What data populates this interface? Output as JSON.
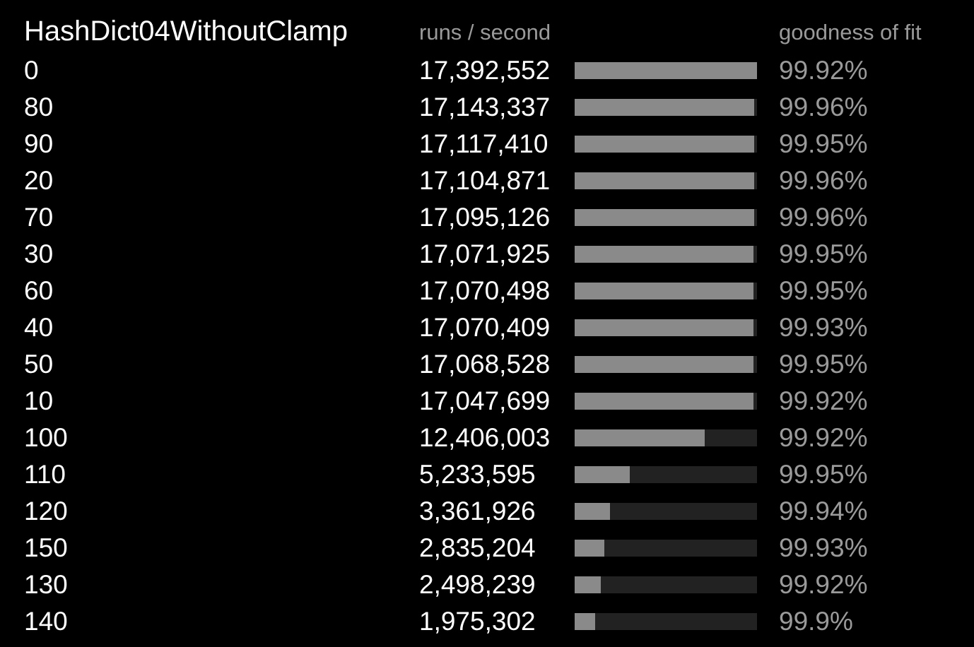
{
  "header": {
    "title": "HashDict04WithoutClamp",
    "runs_label": "runs / second",
    "fit_label": "goodness of fit"
  },
  "colors": {
    "background": "#000000",
    "bar_fill": "#8a8a8a",
    "bar_track": "#222222",
    "text_primary": "#ffffff",
    "text_secondary": "#9a9a9a"
  },
  "chart_data": {
    "type": "bar",
    "title": "HashDict04WithoutClamp",
    "orientation": "horizontal",
    "categories": [
      "0",
      "80",
      "90",
      "20",
      "70",
      "30",
      "60",
      "40",
      "50",
      "10",
      "100",
      "110",
      "120",
      "150",
      "130",
      "140"
    ],
    "values": [
      17392552,
      17143337,
      17117410,
      17104871,
      17095126,
      17071925,
      17070498,
      17070409,
      17068528,
      17047699,
      12406003,
      5233595,
      3361926,
      2835204,
      2498239,
      1975302
    ],
    "value_labels": [
      "17,392,552",
      "17,143,337",
      "17,117,410",
      "17,104,871",
      "17,095,126",
      "17,071,925",
      "17,070,498",
      "17,070,409",
      "17,068,528",
      "17,047,699",
      "12,406,003",
      "5,233,595",
      "3,361,926",
      "2,835,204",
      "2,498,239",
      "1,975,302"
    ],
    "goodness_of_fit": [
      "99.92%",
      "99.96%",
      "99.95%",
      "99.96%",
      "99.96%",
      "99.95%",
      "99.95%",
      "99.93%",
      "99.95%",
      "99.92%",
      "99.92%",
      "99.95%",
      "99.94%",
      "99.93%",
      "99.92%",
      "99.9%"
    ],
    "xlim": [
      0,
      17392552
    ]
  }
}
